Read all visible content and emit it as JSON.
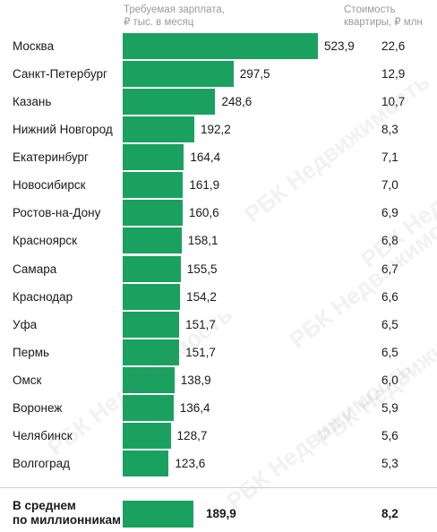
{
  "header": {
    "salary_title": "Требуемая зарплата,\n₽ тыс. в месяц",
    "price_title": "Стоимость\nквартиры, ₽ млн"
  },
  "chart_data": {
    "type": "bar",
    "orientation": "horizontal",
    "categories": [
      "Москва",
      "Санкт-Петербург",
      "Казань",
      "Нижний Новгород",
      "Екатеринбург",
      "Новосибирск",
      "Ростов-на-Дону",
      "Красноярск",
      "Самара",
      "Краснодар",
      "Уфа",
      "Пермь",
      "Омск",
      "Воронеж",
      "Челябинск",
      "Волгоград"
    ],
    "series": [
      {
        "name": "Требуемая зарплата, ₽ тыс. в месяц",
        "values": [
          523.9,
          297.5,
          248.6,
          192.2,
          164.4,
          161.9,
          160.6,
          158.1,
          155.5,
          154.2,
          151.7,
          151.7,
          138.9,
          136.4,
          128.7,
          123.6
        ]
      },
      {
        "name": "Стоимость квартиры, ₽ млн",
        "values": [
          22.6,
          12.9,
          10.7,
          8.3,
          7.1,
          7.0,
          6.9,
          6.8,
          6.7,
          6.6,
          6.5,
          6.5,
          6.0,
          5.9,
          5.6,
          5.3
        ]
      }
    ],
    "value_labels": [
      "523,9",
      "297,5",
      "248,6",
      "192,2",
      "164,4",
      "161,9",
      "160,6",
      "158,1",
      "155,5",
      "154,2",
      "151,7",
      "151,7",
      "138,9",
      "136,4",
      "128,7",
      "123,6"
    ],
    "price_labels": [
      "22,6",
      "12,9",
      "10,7",
      "8,3",
      "7,1",
      "7,0",
      "6,9",
      "6,8",
      "6,7",
      "6,6",
      "6,5",
      "6,5",
      "6,0",
      "5,9",
      "5,6",
      "5,3"
    ],
    "average": {
      "label": "В среднем\nпо миллионникам",
      "salary": 189.9,
      "salary_label": "189,9",
      "price_label": "8,2"
    },
    "xlim": [
      0,
      540
    ],
    "grid": false,
    "legend": "none",
    "bar_color": "#1aa160"
  },
  "watermark": {
    "text": "РБК Недвижимость"
  }
}
